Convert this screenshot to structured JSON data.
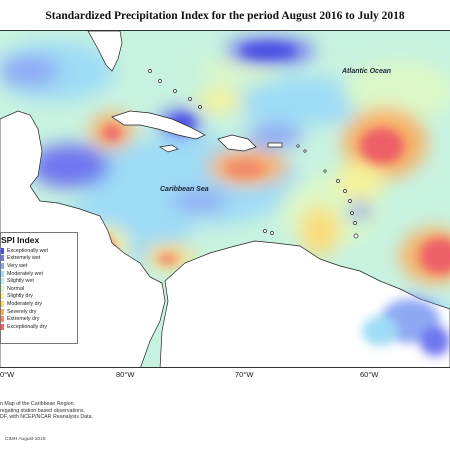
{
  "title": "Standardized Precipitation Index for the period August 2016 to July 2018",
  "map_labels": {
    "atlantic": "Atlantic Ocean",
    "caribbean": "Caribbean Sea"
  },
  "longitude_labels": [
    "0°W",
    "80°W",
    "70°W",
    "60°W"
  ],
  "legend": {
    "title": "SPI Index",
    "items": [
      {
        "label": "Exceptionally wet",
        "color": "#4a4fe0"
      },
      {
        "label": "Extremely wet",
        "color": "#6f76f0"
      },
      {
        "label": "Very wet",
        "color": "#8fa8f4"
      },
      {
        "label": "Moderately wet",
        "color": "#9fdcf6"
      },
      {
        "label": "Slightly wet",
        "color": "#b8f0ec"
      },
      {
        "label": "Normal",
        "color": "#dcf8c8"
      },
      {
        "label": "Slightly dry",
        "color": "#f4f29c"
      },
      {
        "label": "Moderately dry",
        "color": "#fadc78"
      },
      {
        "label": "Severely dry",
        "color": "#f7b066"
      },
      {
        "label": "Extremely dry",
        "color": "#f38a6c"
      },
      {
        "label": "Exceptionally dry",
        "color": "#ee5f67"
      }
    ]
  },
  "notes": [
    "n Map of the Caribbean Region.",
    "regating station based observations,",
    "DF, with NCEP/NCAR Reanalysis Data."
  ],
  "credit": "CIMH August-2018",
  "colors": {
    "background_field": "#c8f2e0",
    "land": "#ffffff"
  }
}
